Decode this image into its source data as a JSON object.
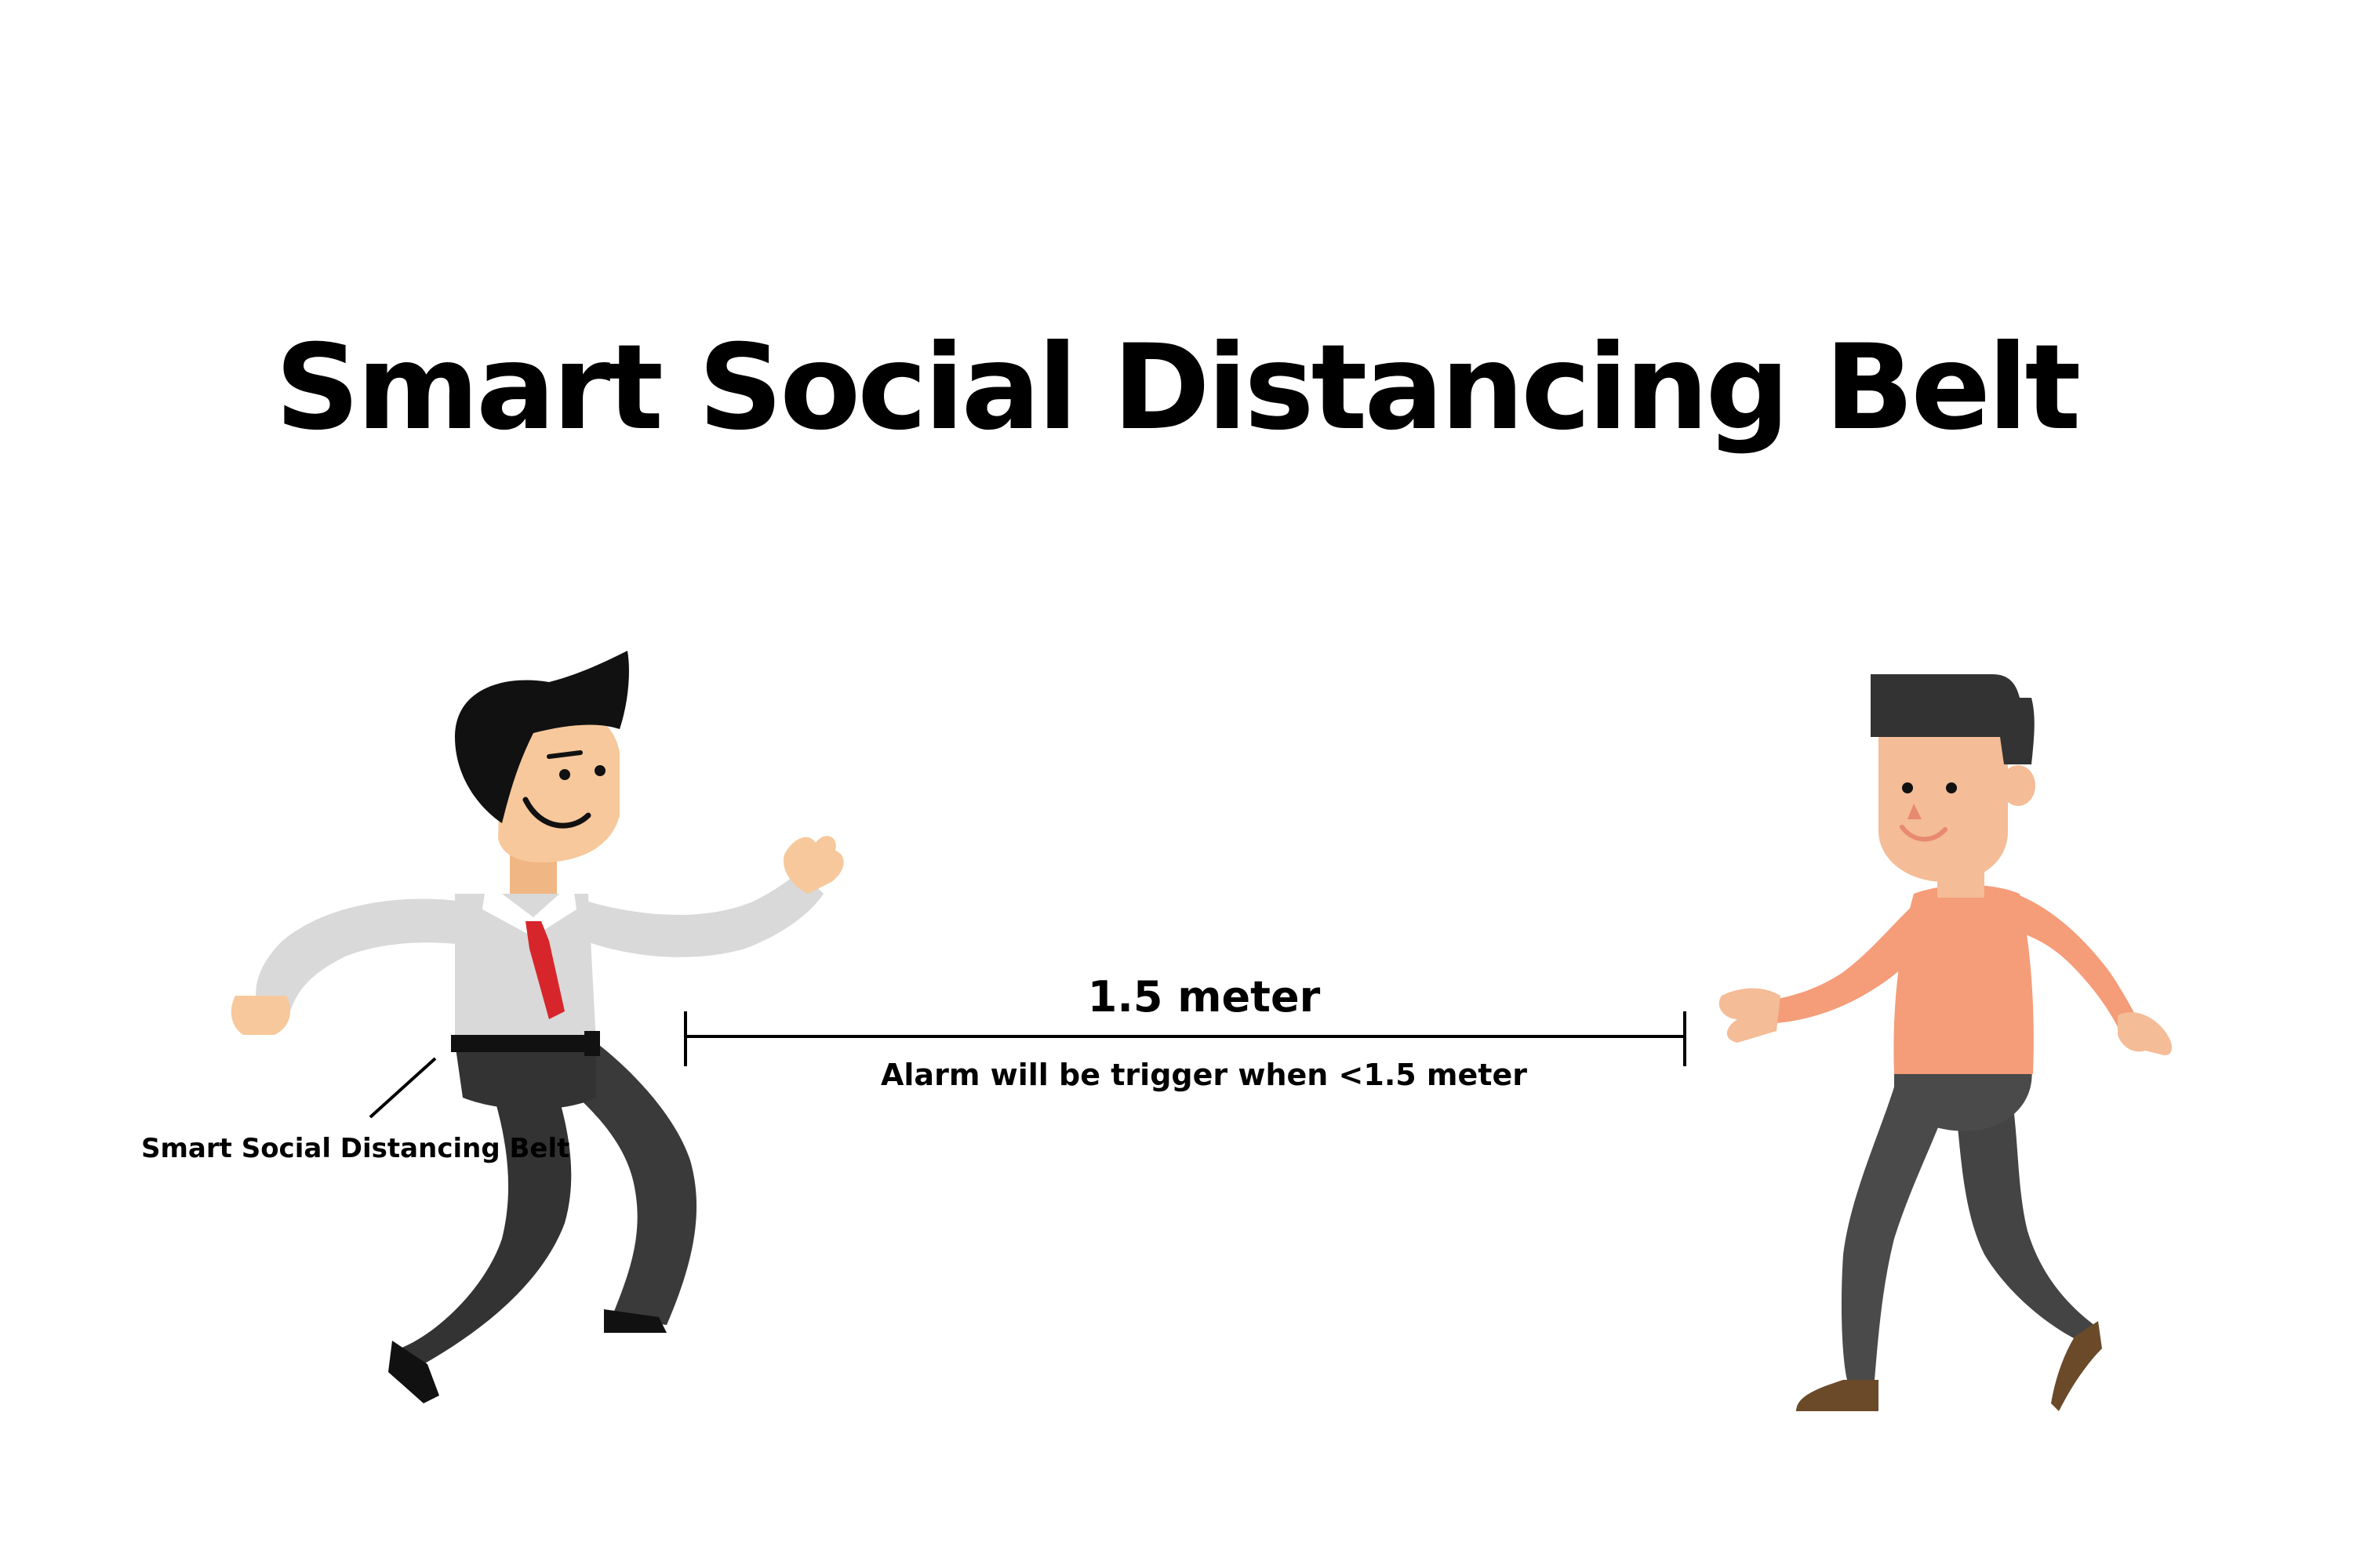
{
  "title": "Smart Social Distancing Belt",
  "distance_label": "1.5 meter",
  "alarm_note": "Alarm will be trigger when <1.5 meter",
  "belt_label": "Smart Social Distancing Belt",
  "colors": {
    "background": "#ffffff",
    "text": "#000000",
    "skin_left": "#f7c89b",
    "shirt_left": "#d9d9d9",
    "tie": "#d7262b",
    "trousers_left": "#333333",
    "hair": "#111111",
    "skin_right": "#f4bc97",
    "shirt_right": "#f59c78",
    "trousers_right": "#4a4a4a",
    "hair_right": "#333333",
    "shoes_right": "#6b4a2a"
  }
}
